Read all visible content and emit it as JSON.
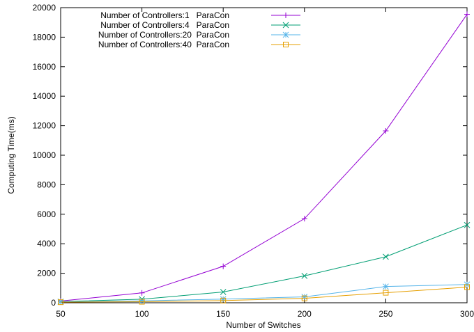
{
  "chart_data": {
    "type": "line",
    "xlabel": "Number of Switches",
    "ylabel": "Computing Time(ms)",
    "xlim": [
      50,
      300
    ],
    "ylim": [
      0,
      20000
    ],
    "x": [
      50,
      100,
      150,
      200,
      250,
      300
    ],
    "xticks": [
      "50",
      "100",
      "150",
      "200",
      "250",
      "300"
    ],
    "yticks": [
      "0",
      "2000",
      "4000",
      "6000",
      "8000",
      "10000",
      "12000",
      "14000",
      "16000",
      "18000",
      "20000"
    ],
    "grid": false,
    "legend_position": "top-left",
    "series": [
      {
        "name": "Number of Controllers:1   ParaCon",
        "color": "#9400d3",
        "marker": "plus",
        "values": [
          120,
          670,
          2470,
          5700,
          11650,
          19550
        ]
      },
      {
        "name": "Number of Controllers:4   ParaCon",
        "color": "#009e73",
        "marker": "cross",
        "values": [
          80,
          240,
          730,
          1820,
          3120,
          5270
        ]
      },
      {
        "name": "Number of Controllers:20  ParaCon",
        "color": "#56b4e9",
        "marker": "star",
        "values": [
          60,
          130,
          250,
          400,
          1100,
          1240
        ]
      },
      {
        "name": "Number of Controllers:40  ParaCon",
        "color": "#e69f00",
        "marker": "square",
        "values": [
          40,
          70,
          150,
          300,
          680,
          1060
        ]
      }
    ]
  }
}
